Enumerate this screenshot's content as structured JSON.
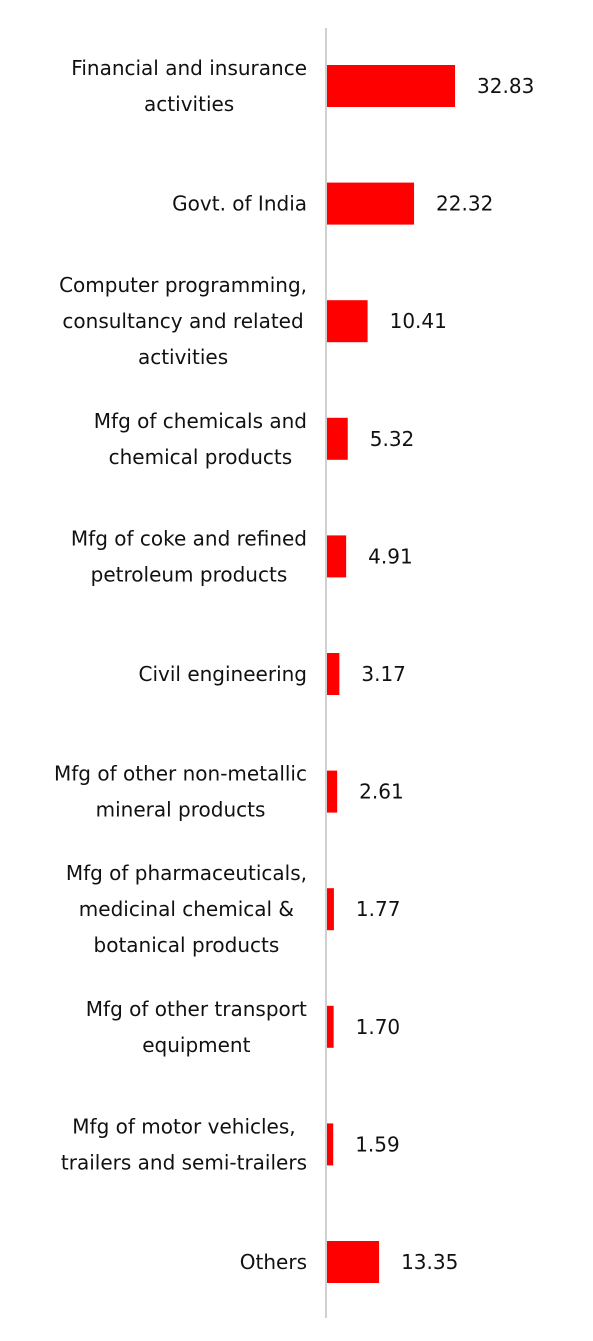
{
  "chart_data": {
    "type": "bar",
    "orientation": "horizontal",
    "categories": [
      [
        "Financial and insurance",
        "activities"
      ],
      [
        "Govt. of India"
      ],
      [
        "Computer programming,",
        "consultancy and related",
        "activities"
      ],
      [
        "Mfg of chemicals and",
        "chemical products"
      ],
      [
        "Mfg of coke and refined",
        "petroleum products"
      ],
      [
        "Civil engineering"
      ],
      [
        "Mfg of other non-metallic",
        "mineral products"
      ],
      [
        "Mfg of pharmaceuticals,",
        "medicinal chemical &",
        "botanical products"
      ],
      [
        "Mfg of other transport",
        "equipment"
      ],
      [
        "Mfg of motor vehicles,",
        "trailers and semi-trailers"
      ],
      [
        "Others"
      ]
    ],
    "values": [
      32.83,
      22.32,
      10.41,
      5.32,
      4.91,
      3.17,
      2.61,
      1.77,
      1.7,
      1.59,
      13.35
    ],
    "value_labels": [
      "32.83",
      "22.32",
      "10.41",
      "5.32",
      "4.91",
      "3.17",
      "2.61",
      "1.77",
      "1.70",
      "1.59",
      "13.35"
    ],
    "bar_color": "#ff0000",
    "axis_color": "#d0d0d0",
    "grid": false,
    "legend": "none"
  }
}
